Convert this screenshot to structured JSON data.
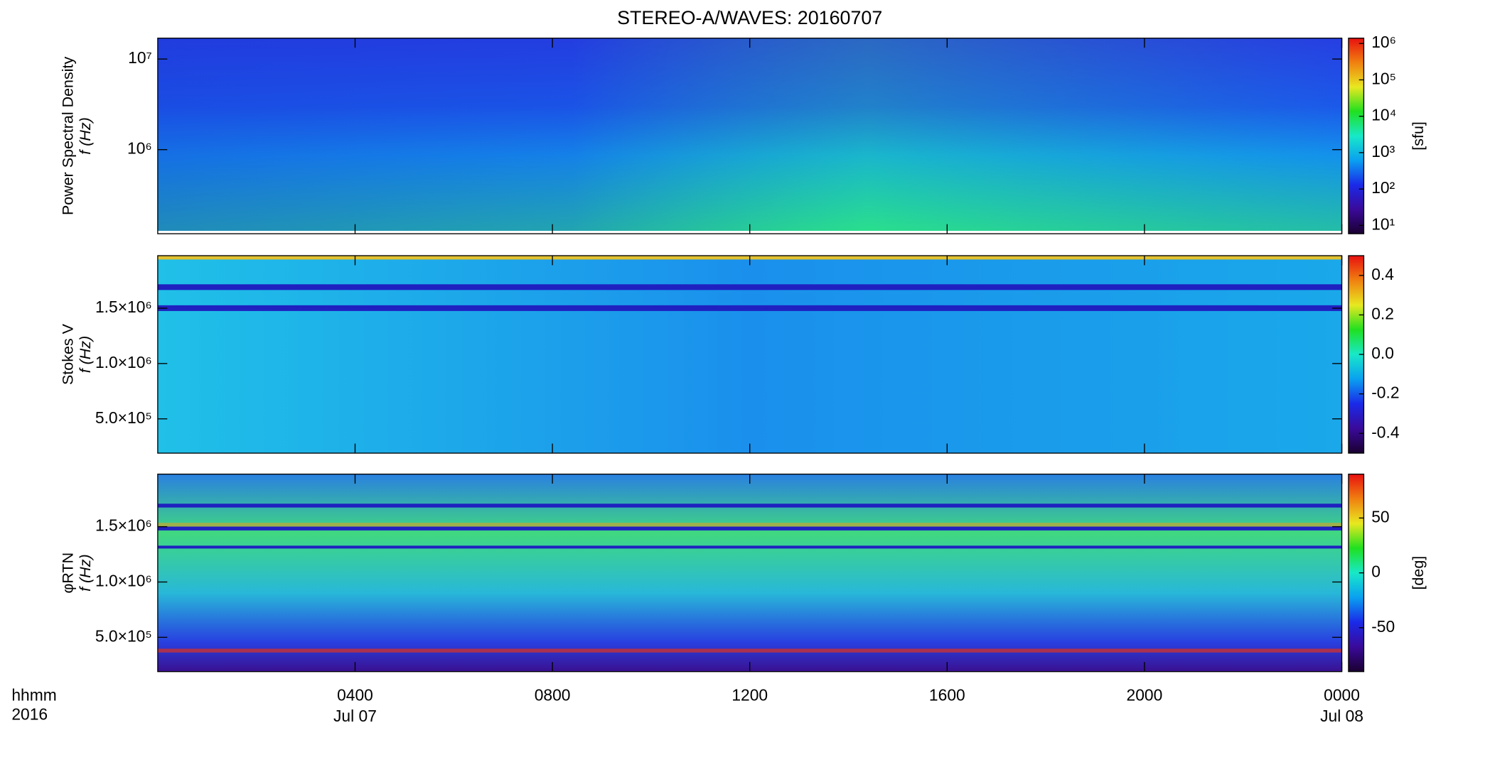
{
  "chart_data": [
    {
      "type": "heatmap",
      "title": "STEREO-A/WAVES: 20160707",
      "ylabel": [
        "Power Spectral Density",
        "f (Hz)"
      ],
      "ylog": true,
      "ylim": [
        118000,
        17000000
      ],
      "yticks": [
        {
          "value": 1000000,
          "label": "10⁶"
        },
        {
          "value": 10000000,
          "label": "10⁷"
        }
      ],
      "colorbar_log": true,
      "clim": [
        5.9,
        1400000
      ],
      "cticks": [
        {
          "value": 10,
          "label": "10¹"
        },
        {
          "value": 100,
          "label": "10²"
        },
        {
          "value": 1000,
          "label": "10³"
        },
        {
          "value": 10000,
          "label": "10⁴"
        },
        {
          "value": 100000,
          "label": "10⁵"
        },
        {
          "value": 1000000,
          "label": "10⁶"
        }
      ],
      "colorbar_label": "[sfu]"
    },
    {
      "type": "heatmap",
      "ylabel": [
        "Stokes V",
        "f (Hz)"
      ],
      "ylog": false,
      "ylim": [
        190000,
        1975000
      ],
      "yticks": [
        {
          "value": 500000,
          "label": "5.0×10⁵"
        },
        {
          "value": 1000000,
          "label": "1.0×10⁶"
        },
        {
          "value": 1500000,
          "label": "1.5×10⁶"
        }
      ],
      "colorbar_log": false,
      "clim": [
        -0.5,
        0.5
      ],
      "cticks": [
        -0.4,
        -0.2,
        {
          "value": 0,
          "label": "0.0"
        },
        0.2,
        0.4
      ]
    },
    {
      "type": "heatmap",
      "ylabel": [
        "φRTN",
        "f (Hz)"
      ],
      "ylog": false,
      "ylim": [
        190000,
        1975000
      ],
      "yticks": [
        {
          "value": 500000,
          "label": "5.0×10⁵"
        },
        {
          "value": 1000000,
          "label": "1.0×10⁶"
        },
        {
          "value": 1500000,
          "label": "1.5×10⁶"
        }
      ],
      "colorbar_log": false,
      "clim": [
        -90,
        90
      ],
      "cticks": [
        -50,
        0,
        50
      ],
      "colorbar_label": "[deg]",
      "xlim": [
        0,
        24
      ],
      "xticks": [
        {
          "value": 4,
          "label": "0400"
        },
        {
          "value": 8,
          "label": "0800"
        },
        {
          "value": 12,
          "label": "1200"
        },
        {
          "value": 16,
          "label": "1600"
        },
        {
          "value": 20,
          "label": "2000"
        },
        {
          "value": 24,
          "label": "0000"
        }
      ],
      "x_date_labels": [
        {
          "value": 4,
          "label": "Jul 07"
        },
        {
          "value": 24,
          "label": "Jul 08"
        }
      ],
      "x_axis_legend": [
        "hhmm",
        "2016"
      ],
      "colormap": [
        "#1a0030",
        "#3a0a9a",
        "#1a2ae8",
        "#0aa0f0",
        "#18e8c8",
        "#20e020",
        "#e8e820",
        "#f08010",
        "#e81010"
      ]
    }
  ]
}
